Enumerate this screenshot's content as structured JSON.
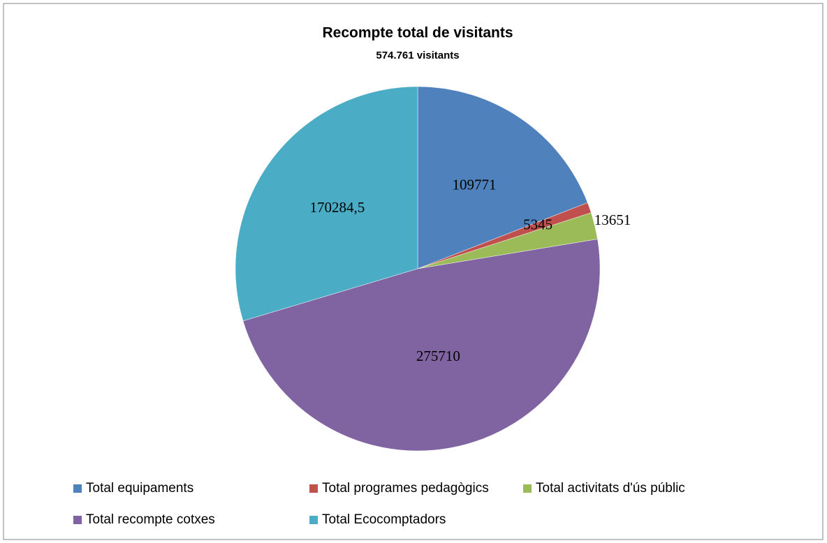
{
  "chart_data": {
    "type": "pie",
    "title": "Recompte total de visitants",
    "subtitle": "574.761 visitants",
    "categories": [
      "Total equipaments",
      "Total programes pedagògics",
      "Total activitats d'ús públic",
      "Total recompte cotxes",
      "Total Ecocomptadors"
    ],
    "values": [
      109771,
      5345,
      13651,
      275710,
      170284.5
    ],
    "value_labels": [
      "109771",
      "5345",
      "13651",
      "275710",
      "170284,5"
    ],
    "colors": [
      "#4f81bd",
      "#c0504d",
      "#9bbb59",
      "#8064a2",
      "#4bacc6"
    ],
    "legend": "bottom"
  }
}
